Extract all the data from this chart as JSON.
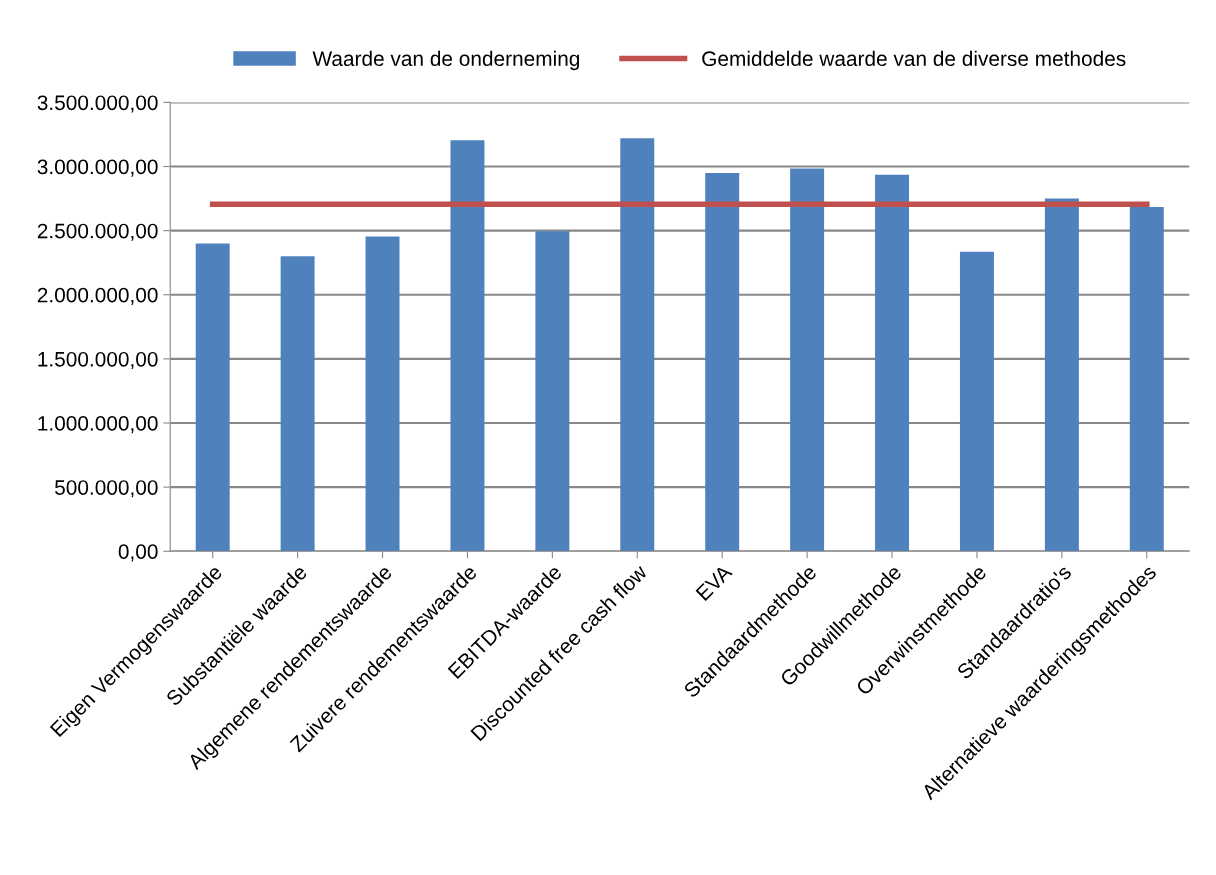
{
  "chart_data": {
    "type": "bar",
    "categories": [
      "Eigen Vermogenswaarde",
      "Substantiële waarde",
      "Algemene rendementswaarde",
      "Zuivere rendementswaarde",
      "EBITDA-waarde",
      "Discounted free cash flow",
      "EVA",
      "Standaardmethode",
      "Goodwillmethode",
      "Overwinstmethode",
      "Standaardratio's",
      "Alternatieve waarderingsmethodes"
    ],
    "series": [
      {
        "name": "Waarde van de onderneming",
        "color": "#4f81bd",
        "values": [
          2400000,
          2300000,
          2455000,
          3205000,
          2495000,
          3220000,
          2950000,
          2985000,
          2935000,
          2335000,
          2750000,
          2685000
        ]
      },
      {
        "name": "Gemiddelde waarde van de diverse methodes",
        "type": "line",
        "color": "#c0504d",
        "values": [
          2705000,
          2705000,
          2705000,
          2705000,
          2705000,
          2705000,
          2705000,
          2705000,
          2705000,
          2705000,
          2705000,
          2705000
        ]
      }
    ],
    "ylim": [
      0,
      3500000
    ],
    "yticks": [
      {
        "value": 0,
        "label": "0,00"
      },
      {
        "value": 500000,
        "label": "500.000,00"
      },
      {
        "value": 1000000,
        "label": "1.000.000,00"
      },
      {
        "value": 1500000,
        "label": "1.500.000,00"
      },
      {
        "value": 2000000,
        "label": "2.000.000,00"
      },
      {
        "value": 2500000,
        "label": "2.500.000,00"
      },
      {
        "value": 3000000,
        "label": "3.000.000,00"
      },
      {
        "value": 3500000,
        "label": "3.500.000,00"
      }
    ],
    "grid": "y",
    "legend": "top",
    "marker": "none",
    "line_style": "solid"
  }
}
